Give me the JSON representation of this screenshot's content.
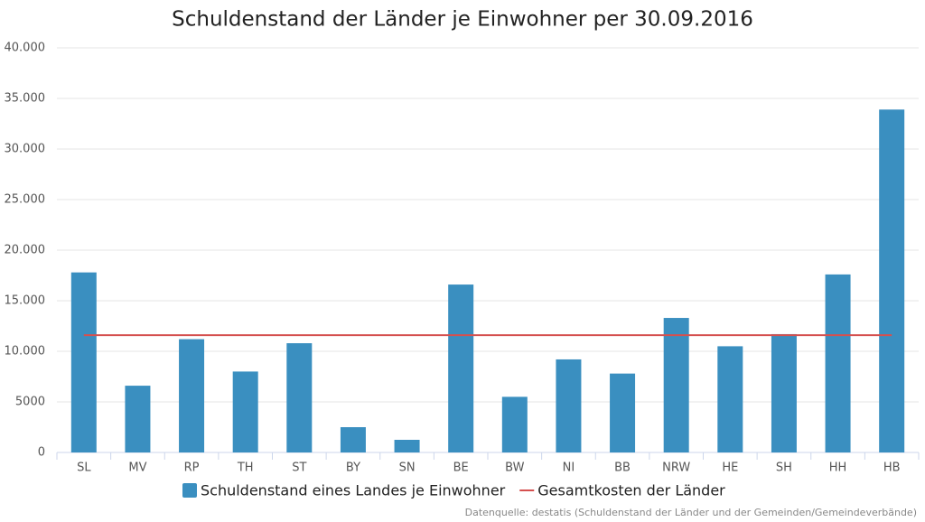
{
  "chart_data": {
    "type": "bar",
    "title": "Schuldenstand der Länder je Einwohner per 30.09.2016",
    "source": "Datenquelle: destatis (Schuldenstand der Länder und der Gemeinden/Gemeindeverbände)",
    "categories": [
      "SL",
      "MV",
      "RP",
      "TH",
      "ST",
      "BY",
      "SN",
      "BE",
      "BW",
      "NI",
      "BB",
      "NRW",
      "HE",
      "SH",
      "HH",
      "HB"
    ],
    "series": [
      {
        "name": "Schuldenstand eines Landes je Einwohner",
        "type": "bar",
        "color": "#3a8fc0",
        "values": [
          17800,
          6600,
          11200,
          8000,
          10800,
          2500,
          1250,
          16600,
          5500,
          9200,
          7800,
          13300,
          10500,
          11700,
          17600,
          33900
        ]
      },
      {
        "name": "Gesamtkosten der Länder",
        "type": "line",
        "color": "#d5504f",
        "values": [
          11600,
          11600,
          11600,
          11600,
          11600,
          11600,
          11600,
          11600,
          11600,
          11600,
          11600,
          11600,
          11600,
          11600,
          11600,
          11600
        ]
      }
    ],
    "ylim": [
      0,
      40000
    ],
    "yticks": [
      0,
      5000,
      {
        "value": 10000,
        "label": "10.000"
      },
      {
        "value": 15000,
        "label": "15.000"
      },
      {
        "value": 20000,
        "label": "20.000"
      },
      {
        "value": 25000,
        "label": "25.000"
      },
      {
        "value": 30000,
        "label": "30.000"
      },
      {
        "value": 35000,
        "label": "35.000"
      },
      {
        "value": 40000,
        "label": "40.000"
      }
    ],
    "grid": true
  }
}
